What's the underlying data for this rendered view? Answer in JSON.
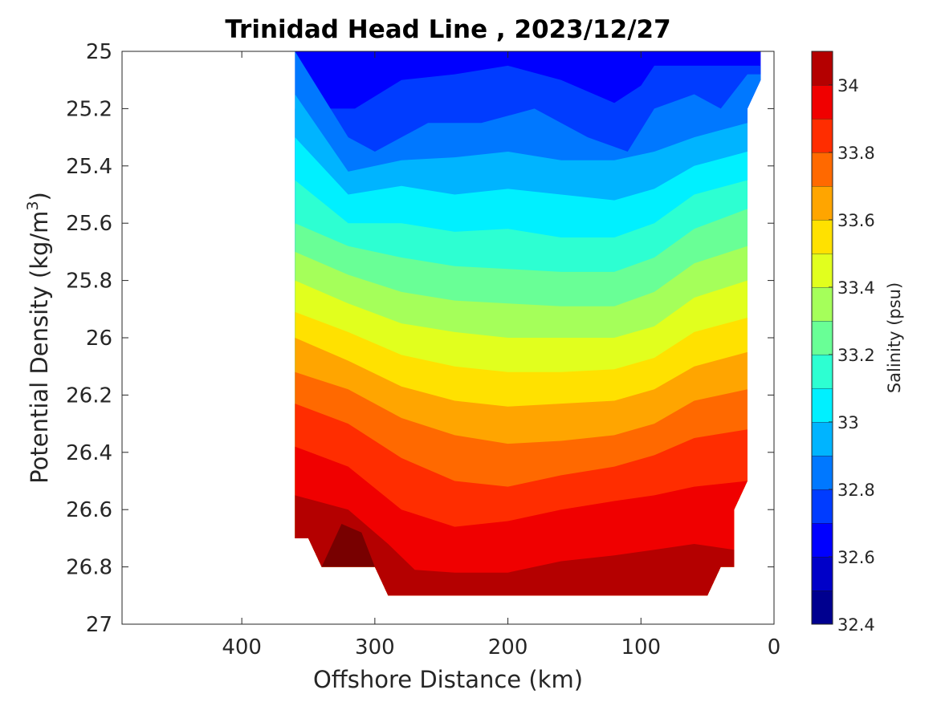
{
  "chart_data": {
    "type": "contour",
    "title": "Trinidad Head Line , 2023/12/27",
    "xlabel": "Offshore Distance (km)",
    "ylabel_main": "Potential Density (kg/m",
    "ylabel_sup": "3",
    "ylabel_close": ")",
    "xlim": [
      490,
      0
    ],
    "ylim": [
      25,
      27
    ],
    "x_reversed": true,
    "y_reversed": true,
    "xticks": [
      400,
      300,
      200,
      100,
      0
    ],
    "xtick_labels": [
      "400",
      "300",
      "200",
      "100",
      "0"
    ],
    "yticks": [
      25,
      25.2,
      25.4,
      25.6,
      25.8,
      26,
      26.2,
      26.4,
      26.6,
      26.8,
      27
    ],
    "ytick_labels": [
      "25",
      "25.2",
      "25.4",
      "25.6",
      "25.8",
      "26",
      "26.2",
      "26.4",
      "26.6",
      "26.8",
      "27"
    ],
    "colorbar": {
      "label": "Salinity (psu)",
      "range": [
        32.4,
        34.1
      ],
      "ticks": [
        32.4,
        32.6,
        32.8,
        33,
        33.2,
        33.4,
        33.6,
        33.8,
        34
      ],
      "tick_labels": [
        "32.4",
        "32.6",
        "32.8",
        "33",
        "33.2",
        "33.4",
        "33.6",
        "33.8",
        "34"
      ],
      "levels": [
        32.4,
        32.5,
        32.6,
        32.7,
        32.8,
        32.9,
        33.0,
        33.1,
        33.2,
        33.3,
        33.4,
        33.5,
        33.6,
        33.7,
        33.8,
        33.9,
        34.0,
        34.1
      ],
      "colors": [
        "#00008f",
        "#0000c8",
        "#0000ff",
        "#003cff",
        "#0078ff",
        "#00b4ff",
        "#00f0ff",
        "#2dffd2",
        "#69ff96",
        "#a5ff5a",
        "#e1ff1e",
        "#ffe100",
        "#ffa500",
        "#ff6900",
        "#ff2d00",
        "#f00000",
        "#b40000"
      ],
      "extra_colors": [
        "#780000"
      ]
    },
    "isolines": [
      {
        "level": 32.7,
        "x": [
          315,
          280,
          240,
          200,
          160,
          120,
          100,
          90
        ],
        "y": [
          25.2,
          25.1,
          25.08,
          25.05,
          25.1,
          25.18,
          25.12,
          25.05
        ]
      },
      {
        "level": 32.8,
        "x": [
          360,
          320,
          300,
          260,
          220,
          180,
          140,
          110,
          90,
          60,
          40,
          20
        ],
        "y": [
          25.0,
          25.3,
          25.35,
          25.25,
          25.25,
          25.2,
          25.3,
          25.35,
          25.2,
          25.15,
          25.2,
          25.08
        ]
      },
      {
        "level": 32.9,
        "x": [
          360,
          320,
          280,
          240,
          200,
          160,
          120,
          90,
          60,
          20
        ],
        "y": [
          25.15,
          25.42,
          25.38,
          25.37,
          25.35,
          25.38,
          25.38,
          25.35,
          25.3,
          25.25
        ]
      },
      {
        "level": 33.0,
        "x": [
          360,
          320,
          280,
          240,
          200,
          160,
          120,
          90,
          60,
          20
        ],
        "y": [
          25.3,
          25.5,
          25.47,
          25.5,
          25.48,
          25.5,
          25.52,
          25.48,
          25.4,
          25.35
        ]
      },
      {
        "level": 33.1,
        "x": [
          360,
          320,
          280,
          240,
          200,
          160,
          120,
          90,
          60,
          20
        ],
        "y": [
          25.45,
          25.6,
          25.6,
          25.63,
          25.62,
          25.65,
          25.65,
          25.6,
          25.5,
          25.45
        ]
      },
      {
        "level": 33.2,
        "x": [
          360,
          320,
          280,
          240,
          200,
          160,
          120,
          90,
          60,
          20
        ],
        "y": [
          25.6,
          25.68,
          25.72,
          25.75,
          25.76,
          25.77,
          25.77,
          25.72,
          25.62,
          25.55
        ]
      },
      {
        "level": 33.3,
        "x": [
          360,
          320,
          280,
          240,
          200,
          160,
          120,
          90,
          60,
          20
        ],
        "y": [
          25.7,
          25.78,
          25.84,
          25.87,
          25.88,
          25.89,
          25.89,
          25.84,
          25.74,
          25.68
        ]
      },
      {
        "level": 33.4,
        "x": [
          360,
          320,
          280,
          240,
          200,
          160,
          120,
          90,
          60,
          20
        ],
        "y": [
          25.8,
          25.88,
          25.95,
          25.98,
          26.0,
          26.0,
          26.0,
          25.96,
          25.86,
          25.8
        ]
      },
      {
        "level": 33.5,
        "x": [
          360,
          320,
          280,
          240,
          200,
          160,
          120,
          90,
          60,
          20
        ],
        "y": [
          25.91,
          25.98,
          26.06,
          26.1,
          26.12,
          26.12,
          26.11,
          26.07,
          25.98,
          25.93
        ]
      },
      {
        "level": 33.6,
        "x": [
          360,
          320,
          280,
          240,
          200,
          160,
          120,
          90,
          60,
          20
        ],
        "y": [
          26.0,
          26.08,
          26.17,
          26.22,
          26.24,
          26.23,
          26.22,
          26.18,
          26.1,
          26.05
        ]
      },
      {
        "level": 33.7,
        "x": [
          360,
          320,
          280,
          240,
          200,
          160,
          120,
          90,
          60,
          20
        ],
        "y": [
          26.12,
          26.18,
          26.28,
          26.34,
          26.37,
          26.36,
          26.34,
          26.3,
          26.22,
          26.18
        ]
      },
      {
        "level": 33.8,
        "x": [
          360,
          320,
          280,
          240,
          200,
          160,
          120,
          90,
          60,
          20
        ],
        "y": [
          26.23,
          26.3,
          26.42,
          26.5,
          26.52,
          26.48,
          26.45,
          26.41,
          26.35,
          26.32
        ]
      },
      {
        "level": 33.9,
        "x": [
          360,
          320,
          280,
          240,
          200,
          160,
          120,
          90,
          60,
          20
        ],
        "y": [
          26.38,
          26.45,
          26.6,
          26.66,
          26.64,
          26.6,
          26.57,
          26.55,
          26.52,
          26.5
        ]
      },
      {
        "level": 34.0,
        "x": [
          360,
          320,
          290,
          270,
          240,
          200,
          160,
          120,
          90,
          60,
          30
        ],
        "y": [
          26.55,
          26.6,
          26.72,
          26.81,
          26.82,
          26.82,
          26.78,
          26.76,
          26.74,
          26.72,
          26.74
        ]
      },
      {
        "level": 34.1,
        "x": [
          340,
          325,
          310,
          300
        ],
        "y": [
          26.8,
          26.65,
          26.68,
          26.8
        ]
      }
    ],
    "data_mask": {
      "x": [
        360,
        360,
        350,
        340,
        300,
        290,
        50,
        40,
        30,
        30,
        20,
        20,
        10,
        10
      ],
      "y": [
        25.0,
        26.7,
        26.7,
        26.8,
        26.8,
        26.9,
        26.9,
        26.8,
        26.8,
        26.6,
        26.5,
        25.2,
        25.1,
        25.0
      ]
    }
  }
}
